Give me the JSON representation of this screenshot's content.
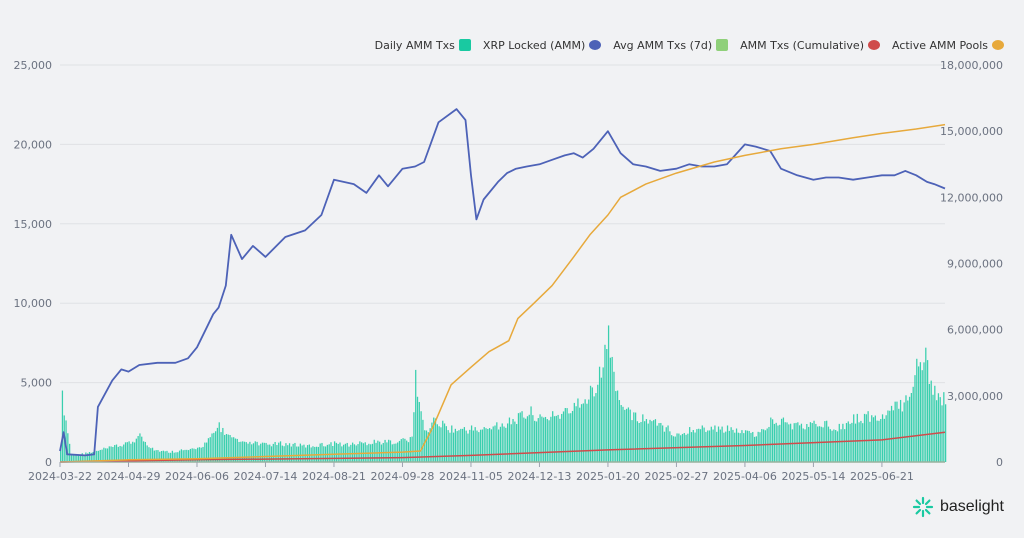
{
  "legend": [
    {
      "label": "Daily AMM Txs",
      "color": "#19c9a1",
      "shape": "square"
    },
    {
      "label": "XRP Locked (AMM)",
      "color": "#4d62b7",
      "shape": "circle"
    },
    {
      "label": "Avg AMM Txs (7d)",
      "color": "#8fd07a",
      "shape": "square"
    },
    {
      "label": "AMM Txs (Cumulative)",
      "color": "#cf4b4b",
      "shape": "circle"
    },
    {
      "label": "Active AMM Pools",
      "color": "#e7a93b",
      "shape": "circle"
    }
  ],
  "brand": {
    "text": "baselight",
    "icon": "baselight-logo-icon"
  },
  "chart_data": {
    "type": "bar+line",
    "left_axis": {
      "min": 0,
      "max": 25000,
      "ticks": [
        "0",
        "5,000",
        "10,000",
        "15,000",
        "20,000",
        "25,000"
      ]
    },
    "right_axis": {
      "min": 0,
      "max": 18000000,
      "ticks": [
        "0",
        "3,000,000",
        "6,000,000",
        "9,000,000",
        "12,000,000",
        "15,000,000",
        "18,000,000"
      ]
    },
    "x_ticks": [
      "2024-03-22",
      "2024-04-29",
      "2024-06-06",
      "2024-07-14",
      "2024-08-21",
      "2024-09-28",
      "2024-11-05",
      "2024-12-13",
      "2025-01-20",
      "2025-02-27",
      "2025-04-06",
      "2025-05-14",
      "2025-06-21"
    ],
    "x_range": [
      "2024-03-22",
      "2025-07-26"
    ],
    "series": [
      {
        "name": "Daily AMM Txs",
        "kind": "bar",
        "axis": "left",
        "color": "#19c9a1",
        "x": [
          "2024-03-22",
          "2024-03-23",
          "2024-03-28",
          "2024-04-05",
          "2024-04-10",
          "2024-04-15",
          "2024-04-22",
          "2024-04-29",
          "2024-05-05",
          "2024-05-12",
          "2024-05-20",
          "2024-05-28",
          "2024-06-06",
          "2024-06-12",
          "2024-06-18",
          "2024-06-24",
          "2024-07-01",
          "2024-07-08",
          "2024-07-14",
          "2024-07-22",
          "2024-07-30",
          "2024-08-07",
          "2024-08-14",
          "2024-08-21",
          "2024-08-28",
          "2024-09-04",
          "2024-09-12",
          "2024-09-20",
          "2024-09-28",
          "2024-10-03",
          "2024-10-05",
          "2024-10-10",
          "2024-10-15",
          "2024-10-20",
          "2024-10-25",
          "2024-11-01",
          "2024-11-05",
          "2024-11-12",
          "2024-11-19",
          "2024-11-26",
          "2024-12-03",
          "2024-12-08",
          "2024-12-13",
          "2024-12-20",
          "2024-12-27",
          "2025-01-03",
          "2025-01-10",
          "2025-01-15",
          "2025-01-20",
          "2025-01-25",
          "2025-02-01",
          "2025-02-08",
          "2025-02-15",
          "2025-02-22",
          "2025-02-27",
          "2025-03-06",
          "2025-03-13",
          "2025-03-20",
          "2025-03-27",
          "2025-04-06",
          "2025-04-13",
          "2025-04-20",
          "2025-04-27",
          "2025-05-05",
          "2025-05-14",
          "2025-05-21",
          "2025-05-28",
          "2025-06-05",
          "2025-06-13",
          "2025-06-21",
          "2025-06-28",
          "2025-07-04",
          "2025-07-10",
          "2025-07-15",
          "2025-07-20",
          "2025-07-25"
        ],
        "values": [
          800,
          4500,
          500,
          600,
          700,
          900,
          1100,
          1300,
          1800,
          900,
          700,
          800,
          900,
          1500,
          2500,
          1700,
          1300,
          1300,
          1200,
          1300,
          1200,
          1100,
          1200,
          1300,
          1200,
          1300,
          1400,
          1400,
          1500,
          1600,
          5800,
          2000,
          2800,
          2600,
          2300,
          2200,
          2300,
          2200,
          2500,
          2800,
          3200,
          3500,
          3000,
          3200,
          3400,
          4000,
          4800,
          6000,
          8600,
          4500,
          3300,
          3000,
          2700,
          2300,
          1800,
          2200,
          2300,
          2300,
          2300,
          2000,
          1900,
          2800,
          2800,
          2500,
          2600,
          2600,
          2400,
          3000,
          3200,
          3000,
          3800,
          4200,
          6500,
          7200,
          4800,
          4400
        ]
      },
      {
        "name": "XRP Locked (AMM)",
        "kind": "line",
        "axis": "right",
        "color": "#4d62b7",
        "x": [
          "2024-03-22",
          "2024-03-24",
          "2024-03-26",
          "2024-04-05",
          "2024-04-10",
          "2024-04-12",
          "2024-04-20",
          "2024-04-25",
          "2024-04-29",
          "2024-05-05",
          "2024-05-15",
          "2024-05-25",
          "2024-06-01",
          "2024-06-06",
          "2024-06-09",
          "2024-06-12",
          "2024-06-15",
          "2024-06-18",
          "2024-06-22",
          "2024-06-25",
          "2024-07-01",
          "2024-07-07",
          "2024-07-14",
          "2024-07-25",
          "2024-08-05",
          "2024-08-14",
          "2024-08-21",
          "2024-09-01",
          "2024-09-08",
          "2024-09-15",
          "2024-09-20",
          "2024-09-28",
          "2024-10-05",
          "2024-10-10",
          "2024-10-18",
          "2024-10-28",
          "2024-11-02",
          "2024-11-05",
          "2024-11-08",
          "2024-11-12",
          "2024-11-20",
          "2024-11-25",
          "2024-11-30",
          "2024-12-06",
          "2024-12-13",
          "2024-12-20",
          "2024-12-27",
          "2025-01-01",
          "2025-01-06",
          "2025-01-12",
          "2025-01-20",
          "2025-01-27",
          "2025-02-03",
          "2025-02-10",
          "2025-02-18",
          "2025-02-27",
          "2025-03-06",
          "2025-03-13",
          "2025-03-20",
          "2025-03-27",
          "2025-04-06",
          "2025-04-12",
          "2025-04-16",
          "2025-04-20",
          "2025-04-26",
          "2025-05-05",
          "2025-05-14",
          "2025-05-21",
          "2025-05-28",
          "2025-06-05",
          "2025-06-13",
          "2025-06-21",
          "2025-06-28",
          "2025-07-04",
          "2025-07-10",
          "2025-07-16",
          "2025-07-20",
          "2025-07-26"
        ],
        "values": [
          500000,
          1350000,
          350000,
          300000,
          350000,
          2500000,
          3700000,
          4200000,
          4100000,
          4400000,
          4500000,
          4500000,
          4700000,
          5200000,
          5700000,
          6200000,
          6700000,
          7000000,
          8000000,
          10300000,
          9200000,
          9800000,
          9300000,
          10200000,
          10500000,
          11200000,
          12800000,
          12600000,
          12200000,
          13000000,
          12500000,
          13300000,
          13400000,
          13600000,
          15400000,
          16000000,
          15500000,
          13000000,
          11000000,
          11900000,
          12700000,
          13100000,
          13300000,
          13400000,
          13500000,
          13700000,
          13900000,
          14000000,
          13800000,
          14200000,
          15000000,
          14000000,
          13500000,
          13400000,
          13200000,
          13300000,
          13500000,
          13400000,
          13400000,
          13500000,
          14400000,
          14300000,
          14200000,
          14100000,
          13300000,
          13000000,
          12800000,
          12900000,
          12900000,
          12800000,
          12900000,
          13000000,
          13000000,
          13200000,
          13000000,
          12700000,
          12600000,
          12400000
        ]
      },
      {
        "name": "Avg AMM Txs (7d)",
        "kind": "line",
        "axis": "left",
        "color": "#8fd07a",
        "x": [
          "2024-03-22",
          "2025-07-26"
        ],
        "values": [
          0,
          0
        ]
      },
      {
        "name": "AMM Txs (Cumulative)",
        "kind": "line",
        "axis": "right",
        "color": "#cf4b4b",
        "x": [
          "2024-03-22",
          "2024-06-06",
          "2024-09-28",
          "2024-11-05",
          "2025-01-20",
          "2025-04-06",
          "2025-06-21",
          "2025-07-26"
        ],
        "values": [
          0,
          100000,
          200000,
          300000,
          550000,
          750000,
          1000000,
          1350000
        ]
      },
      {
        "name": "Active AMM Pools",
        "kind": "line",
        "axis": "right",
        "color": "#e7a93b",
        "x": [
          "2024-03-22",
          "2024-04-29",
          "2024-06-06",
          "2024-07-14",
          "2024-08-21",
          "2024-09-28",
          "2024-10-08",
          "2024-10-15",
          "2024-10-25",
          "2024-11-05",
          "2024-11-15",
          "2024-11-26",
          "2024-12-01",
          "2024-12-10",
          "2024-12-20",
          "2025-01-01",
          "2025-01-10",
          "2025-01-20",
          "2025-01-27",
          "2025-02-10",
          "2025-02-27",
          "2025-03-20",
          "2025-04-06",
          "2025-04-26",
          "2025-05-14",
          "2025-06-05",
          "2025-06-21",
          "2025-07-10",
          "2025-07-26"
        ],
        "values": [
          0,
          100000,
          150000,
          250000,
          350000,
          450000,
          500000,
          1600000,
          3500000,
          4300000,
          5000000,
          5500000,
          6500000,
          7200000,
          8000000,
          9300000,
          10300000,
          11200000,
          12000000,
          12600000,
          13100000,
          13600000,
          13900000,
          14200000,
          14400000,
          14700000,
          14900000,
          15100000,
          15300000
        ]
      }
    ]
  }
}
